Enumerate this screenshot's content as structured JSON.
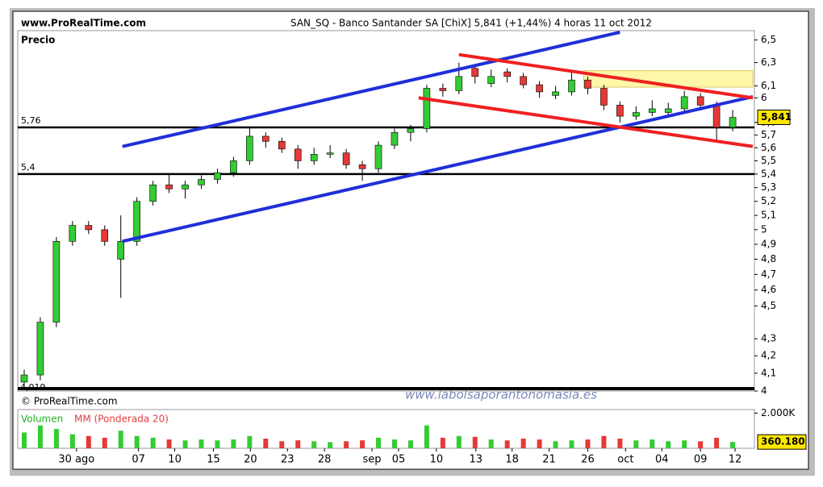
{
  "site": "www.ProRealTime.com",
  "chart_data": {
    "type": "candlestick",
    "title": "SAN_SQ - Banco Santander SA [ChiX]   5,841 (+1,44%)   4 horas   11 oct 2012",
    "panel_label": "Precio",
    "copyright": "© ProRealTime.com",
    "watermark": "www.labolsaporantonomasia.es",
    "log_scale": true,
    "ylim": [
      4,
      6.57
    ],
    "yticks": [
      {
        "value": 6.5,
        "label": "6,5"
      },
      {
        "value": 6.3,
        "label": "6,3"
      },
      {
        "value": 6.1,
        "label": "6,1"
      },
      6,
      {
        "value": 5.8,
        "label": "5,8"
      },
      {
        "value": 5.7,
        "label": "5,7"
      },
      {
        "value": 5.6,
        "label": "5,6"
      },
      {
        "value": 5.5,
        "label": "5,5"
      },
      {
        "value": 5.4,
        "label": "5,4"
      },
      {
        "value": 5.3,
        "label": "5,3"
      },
      {
        "value": 5.2,
        "label": "5,2"
      },
      {
        "value": 5.1,
        "label": "5,1"
      },
      5,
      {
        "value": 4.9,
        "label": "4,9"
      },
      {
        "value": 4.8,
        "label": "4,8"
      },
      {
        "value": 4.7,
        "label": "4,7"
      },
      {
        "value": 4.6,
        "label": "4,6"
      },
      {
        "value": 4.5,
        "label": "4,5"
      },
      {
        "value": 4.3,
        "label": "4,3"
      },
      {
        "value": 4.2,
        "label": "4,2"
      },
      {
        "value": 4.1,
        "label": "4,1"
      },
      4
    ],
    "xlim": [
      0,
      183
    ],
    "xticks": [
      {
        "value": 14.6,
        "label": "30 ago"
      },
      {
        "value": 30,
        "label": "07"
      },
      {
        "value": 39,
        "label": "10"
      },
      {
        "value": 48.6,
        "label": "15"
      },
      {
        "value": 57.8,
        "label": "20"
      },
      {
        "value": 67,
        "label": "23"
      },
      {
        "value": 76.2,
        "label": "28"
      },
      {
        "value": 88,
        "label": "sep"
      },
      {
        "value": 94.6,
        "label": "05"
      },
      {
        "value": 104,
        "label": "10"
      },
      {
        "value": 113.8,
        "label": "13"
      },
      {
        "value": 122.8,
        "label": "18"
      },
      {
        "value": 132,
        "label": "21"
      },
      {
        "value": 141.6,
        "label": "26"
      },
      {
        "value": 151,
        "label": "oct"
      },
      {
        "value": 160,
        "label": "04"
      },
      {
        "value": 169.6,
        "label": "09"
      },
      {
        "value": 178.2,
        "label": "12"
      }
    ],
    "up_color": "#33cc33",
    "down_color": "#e53935",
    "x": [
      1.6,
      5.6,
      9.6,
      13.6,
      17.6,
      21.6,
      25.6,
      29.6,
      33.6,
      37.6,
      41.6,
      45.6,
      49.6,
      53.6,
      57.6,
      61.6,
      65.6,
      69.6,
      73.6,
      77.6,
      81.6,
      85.6,
      89.6,
      93.6,
      97.6,
      101.6,
      105.6,
      109.6,
      113.6,
      117.6,
      121.6,
      125.6,
      129.6,
      133.6,
      137.6,
      141.6,
      145.6,
      149.6,
      153.6,
      157.6,
      161.6,
      165.6,
      169.6,
      173.6,
      177.6
    ],
    "open": [
      4.05,
      4.09,
      4.4,
      4.92,
      5.03,
      5.0,
      4.8,
      4.92,
      5.2,
      5.32,
      5.29,
      5.32,
      5.36,
      5.41,
      5.5,
      5.69,
      5.65,
      5.59,
      5.5,
      5.55,
      5.56,
      5.47,
      5.44,
      5.62,
      5.72,
      5.75,
      6.08,
      6.06,
      6.25,
      6.12,
      6.22,
      6.18,
      6.11,
      6.02,
      6.05,
      6.15,
      6.08,
      5.94,
      5.85,
      5.88,
      5.88,
      5.91,
      6.01,
      5.94,
      5.76
    ],
    "high": [
      4.12,
      4.43,
      4.95,
      5.06,
      5.06,
      5.03,
      5.1,
      5.23,
      5.35,
      5.4,
      5.35,
      5.39,
      5.44,
      5.53,
      5.76,
      5.72,
      5.68,
      5.62,
      5.6,
      5.62,
      5.59,
      5.5,
      5.65,
      5.75,
      5.78,
      6.11,
      6.12,
      6.3,
      6.28,
      6.24,
      6.25,
      6.21,
      6.14,
      6.1,
      6.22,
      6.18,
      6.11,
      5.97,
      5.93,
      5.98,
      5.96,
      6.06,
      6.04,
      5.97,
      5.9
    ],
    "low": [
      4.02,
      4.06,
      4.37,
      4.89,
      4.97,
      4.89,
      4.55,
      4.89,
      5.17,
      5.26,
      5.22,
      5.29,
      5.33,
      5.38,
      5.47,
      5.6,
      5.56,
      5.44,
      5.47,
      5.52,
      5.44,
      5.35,
      5.41,
      5.59,
      5.65,
      5.72,
      6.01,
      6.03,
      6.12,
      6.09,
      6.13,
      6.08,
      6.0,
      5.99,
      6.02,
      6.03,
      5.9,
      5.8,
      5.82,
      5.85,
      5.85,
      5.88,
      5.91,
      5.65,
      5.73
    ],
    "close": [
      4.09,
      4.4,
      4.92,
      5.03,
      5.0,
      4.92,
      4.92,
      5.2,
      5.32,
      5.29,
      5.32,
      5.36,
      5.41,
      5.5,
      5.69,
      5.65,
      5.59,
      5.5,
      5.55,
      5.56,
      5.47,
      5.44,
      5.62,
      5.72,
      5.75,
      6.08,
      6.06,
      6.18,
      6.18,
      6.18,
      6.18,
      6.11,
      6.05,
      6.05,
      6.15,
      6.08,
      5.94,
      5.85,
      5.88,
      5.91,
      5.91,
      6.01,
      5.94,
      5.76,
      5.84
    ],
    "last_price": {
      "value": 5.841,
      "label": "5,841"
    },
    "low_label": {
      "value": 4.019,
      "label": "4,019"
    },
    "levels": [
      {
        "value": 5.76,
        "label": "5,76"
      },
      {
        "value": 5.4,
        "label": "5,4"
      }
    ],
    "trendlines": [
      {
        "color": "#1f2fd8",
        "x": [
          26,
          149.6
        ],
        "y": [
          5.61,
          6.57
        ]
      },
      {
        "color": "#1f2fd8",
        "x": [
          26,
          182.6
        ],
        "y": [
          4.92,
          6.01
        ]
      },
      {
        "color": "#f02020",
        "x": [
          109.6,
          182.6
        ],
        "y": [
          6.37,
          6.0
        ]
      },
      {
        "color": "#f02020",
        "x": [
          99.6,
          182.6
        ],
        "y": [
          6.0,
          5.61
        ]
      }
    ],
    "zone": {
      "color": "#fff7a8",
      "x": [
        140.6,
        182.6
      ],
      "y": [
        6.09,
        6.23
      ]
    },
    "volume": {
      "label": "Volumen",
      "ma_label": "MM (Ponderada 20)",
      "ylim": [
        0,
        2200000
      ],
      "yticks": [
        {
          "value": 2000000,
          "label": "2.000K"
        }
      ],
      "last": {
        "value": 360180,
        "label": "360.180"
      },
      "values": [
        900000,
        1300000,
        1100000,
        800000,
        700000,
        600000,
        1000000,
        700000,
        600000,
        500000,
        450000,
        500000,
        450000,
        500000,
        700000,
        550000,
        400000,
        450000,
        400000,
        350000,
        400000,
        450000,
        600000,
        500000,
        450000,
        1300000,
        600000,
        700000,
        650000,
        500000,
        450000,
        550000,
        500000,
        400000,
        450000,
        500000,
        700000,
        550000,
        450000,
        500000,
        400000,
        450000,
        400000,
        600000,
        360180
      ]
    }
  }
}
